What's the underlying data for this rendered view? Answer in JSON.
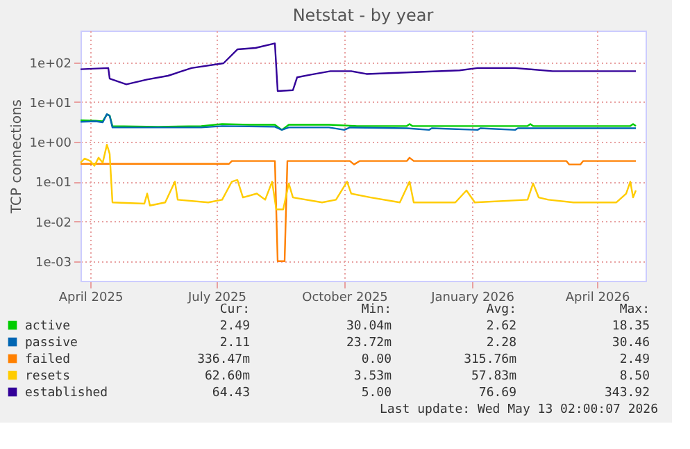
{
  "chart_data": {
    "type": "line",
    "title": "Netstat - by year",
    "ylabel": "TCP connections",
    "log": "y",
    "grid": true,
    "legend": "bottom",
    "xlim": [
      "2025-03-25",
      "2026-05-06"
    ],
    "xticks": [
      {
        "value": "2025-04-01",
        "label": "April 2025"
      },
      {
        "value": "2025-07-01",
        "label": "July 2025"
      },
      {
        "value": "2025-10-01",
        "label": "October 2025"
      },
      {
        "value": "2026-01-01",
        "label": "January 2026"
      },
      {
        "value": "2026-04-01",
        "label": "April 2026"
      }
    ],
    "ylim": [
      0.00032,
      630
    ],
    "yticks": [
      {
        "value": 0.001,
        "label": "1e-03"
      },
      {
        "value": 0.01,
        "label": "1e-02"
      },
      {
        "value": 0.1,
        "label": "1e-01"
      },
      {
        "value": 1,
        "label": "1e+00"
      },
      {
        "value": 10,
        "label": "1e+01"
      },
      {
        "value": 100,
        "label": "1e+02"
      }
    ],
    "series": [
      {
        "name": "active",
        "color": "#00cc00",
        "x": [
          "2025-03-25",
          "2025-04-05",
          "2025-04-10",
          "2025-04-13",
          "2025-04-15",
          "2025-04-17",
          "2025-05-20",
          "2025-06-20",
          "2025-07-05",
          "2025-07-25",
          "2025-08-12",
          "2025-08-17",
          "2025-08-22",
          "2025-09-20",
          "2025-10-10",
          "2025-11-15",
          "2025-11-17",
          "2025-11-19",
          "2026-02-10",
          "2026-02-12",
          "2026-02-14",
          "2026-04-25",
          "2026-04-27",
          "2026-04-29"
        ],
        "values": [
          3.5,
          3.4,
          3.3,
          4.9,
          4.6,
          2.5,
          2.4,
          2.5,
          2.8,
          2.7,
          2.7,
          2.0,
          2.7,
          2.7,
          2.5,
          2.5,
          2.8,
          2.5,
          2.5,
          2.8,
          2.5,
          2.5,
          2.8,
          2.5
        ]
      },
      {
        "name": "passive",
        "color": "#0066b3",
        "x": [
          "2025-03-25",
          "2025-04-05",
          "2025-04-10",
          "2025-04-13",
          "2025-04-15",
          "2025-04-17",
          "2025-06-20",
          "2025-07-05",
          "2025-08-12",
          "2025-08-17",
          "2025-08-22",
          "2025-09-20",
          "2025-10-01",
          "2025-10-05",
          "2025-11-15",
          "2025-12-01",
          "2025-12-03",
          "2026-01-05",
          "2026-01-07",
          "2026-02-01",
          "2026-02-03",
          "2026-03-01",
          "2026-04-29"
        ],
        "values": [
          3.2,
          3.3,
          3.1,
          5.0,
          4.5,
          2.3,
          2.3,
          2.5,
          2.4,
          2.0,
          2.3,
          2.3,
          2.0,
          2.3,
          2.2,
          2.0,
          2.2,
          2.0,
          2.2,
          2.0,
          2.2,
          2.2,
          2.2
        ]
      },
      {
        "name": "failed",
        "color": "#ff8000",
        "x": [
          "2025-03-25",
          "2025-07-10",
          "2025-07-12",
          "2025-08-12",
          "2025-08-14",
          "2025-08-19",
          "2025-08-21",
          "2025-10-05",
          "2025-10-08",
          "2025-10-12",
          "2025-11-15",
          "2025-11-17",
          "2025-11-20",
          "2026-03-10",
          "2026-03-12",
          "2026-03-20",
          "2026-03-22",
          "2026-04-29"
        ],
        "values": [
          0.28,
          0.28,
          0.33,
          0.33,
          0.001,
          0.001,
          0.33,
          0.33,
          0.27,
          0.33,
          0.33,
          0.4,
          0.33,
          0.33,
          0.27,
          0.27,
          0.33,
          0.33
        ]
      },
      {
        "name": "resets",
        "color": "#ffcc00",
        "x": [
          "2025-03-25",
          "2025-03-28",
          "2025-04-01",
          "2025-04-04",
          "2025-04-07",
          "2025-04-10",
          "2025-04-13",
          "2025-04-15",
          "2025-04-17",
          "2025-05-10",
          "2025-05-12",
          "2025-05-14",
          "2025-05-25",
          "2025-06-01",
          "2025-06-03",
          "2025-06-25",
          "2025-07-05",
          "2025-07-12",
          "2025-07-16",
          "2025-07-20",
          "2025-07-30",
          "2025-08-05",
          "2025-08-10",
          "2025-08-13",
          "2025-08-18",
          "2025-08-22",
          "2025-08-25",
          "2025-09-15",
          "2025-09-25",
          "2025-10-03",
          "2025-10-06",
          "2025-10-20",
          "2025-11-10",
          "2025-11-17",
          "2025-11-20",
          "2025-12-20",
          "2025-12-28",
          "2026-01-03",
          "2026-02-10",
          "2026-02-14",
          "2026-02-18",
          "2026-02-25",
          "2026-03-15",
          "2026-04-15",
          "2026-04-22",
          "2026-04-25",
          "2026-04-27",
          "2026-04-29"
        ],
        "values": [
          0.3,
          0.38,
          0.33,
          0.25,
          0.4,
          0.3,
          0.85,
          0.5,
          0.03,
          0.028,
          0.05,
          0.025,
          0.03,
          0.1,
          0.035,
          0.03,
          0.035,
          0.1,
          0.11,
          0.04,
          0.05,
          0.035,
          0.1,
          0.02,
          0.02,
          0.09,
          0.04,
          0.03,
          0.035,
          0.1,
          0.05,
          0.04,
          0.03,
          0.1,
          0.03,
          0.03,
          0.06,
          0.03,
          0.035,
          0.09,
          0.04,
          0.035,
          0.03,
          0.03,
          0.05,
          0.1,
          0.04,
          0.06
        ]
      },
      {
        "name": "established",
        "color": "#330099",
        "x": [
          "2025-03-25",
          "2025-04-14",
          "2025-04-15",
          "2025-04-27",
          "2025-05-12",
          "2025-05-27",
          "2025-06-13",
          "2025-07-06",
          "2025-07-16",
          "2025-07-29",
          "2025-08-12",
          "2025-08-14",
          "2025-08-25",
          "2025-08-28",
          "2025-09-07",
          "2025-09-21",
          "2025-10-06",
          "2025-10-17",
          "2025-12-23",
          "2026-01-05",
          "2026-02-01",
          "2026-02-28",
          "2026-04-29"
        ],
        "values": [
          67,
          72,
          39,
          28,
          37,
          46,
          72,
          95,
          212,
          230,
          300,
          19,
          20,
          42,
          49,
          60,
          60,
          51,
          63,
          72,
          72,
          60,
          60
        ]
      }
    ],
    "annotations": [
      "Cur:",
      "Min:",
      "Avg:",
      "Max:",
      "2.49",
      "30.04m",
      "2.62",
      "18.35",
      "2.11",
      "23.72m",
      "2.28",
      "30.46",
      "336.47m",
      "0.00",
      "315.76m",
      "2.49",
      "62.60m",
      "3.53m",
      "57.83m",
      "8.50",
      "64.43",
      "5.00",
      "76.69",
      "343.92",
      "Last update: Wed May 13 02:00:07 2026"
    ]
  }
}
